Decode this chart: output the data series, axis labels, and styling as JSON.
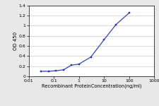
{
  "x": [
    0.031,
    0.063,
    0.125,
    0.25,
    0.5,
    1.0,
    3.0,
    10.0,
    30.0,
    100.0
  ],
  "y": [
    0.1,
    0.1,
    0.11,
    0.13,
    0.22,
    0.24,
    0.38,
    0.72,
    1.02,
    1.25
  ],
  "line_color": "#3344bb",
  "marker_color": "#2233aa",
  "marker_style": "s",
  "marker_size": 2.0,
  "line_width": 0.9,
  "xlabel": "Recombinant ProteinConcentration(ng/ml)",
  "ylabel": "OD 450",
  "xlim": [
    0.01,
    1000
  ],
  "ylim": [
    0,
    1.4
  ],
  "yticks": [
    0,
    0.2,
    0.4,
    0.6,
    0.8,
    1.0,
    1.2,
    1.4
  ],
  "xticks": [
    0.01,
    0.1,
    1,
    10,
    100,
    1000
  ],
  "xtick_labels": [
    "0.01",
    "0.1",
    "1",
    "10",
    "100",
    "1000"
  ],
  "background_color": "#e8e8e8",
  "plot_bg_color": "#ffffff",
  "xlabel_fontsize": 4.8,
  "ylabel_fontsize": 5.0,
  "tick_fontsize": 4.5,
  "grid_color": "#cccccc",
  "grid_lw": 0.5
}
